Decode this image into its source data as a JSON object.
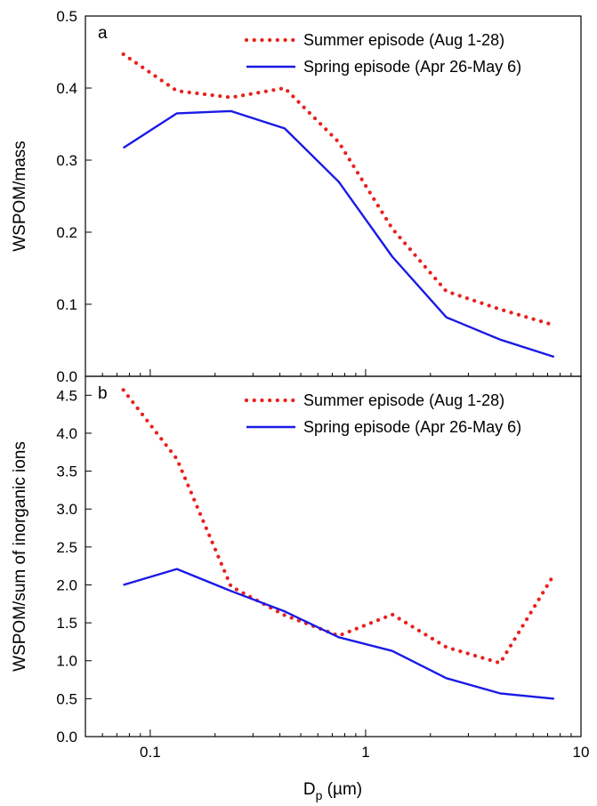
{
  "chart_data": {
    "type": "line",
    "x_scale": "log",
    "xlabel_main": "D",
    "xlabel_sub": "p",
    "xlabel_unit": " (µm)",
    "xlim": [
      0.05,
      10
    ],
    "x_ticks": [
      0.1,
      1,
      10
    ],
    "x_tick_labels": [
      "0.1",
      "1",
      "10"
    ],
    "panels": [
      {
        "letter": "a",
        "ylabel": "WSPOM/mass",
        "ylim": [
          0,
          0.5
        ],
        "y_ticks": [
          0,
          0.1,
          0.2,
          0.3,
          0.4,
          0.5
        ],
        "y_tick_labels": [
          "0.0",
          "0.1",
          "0.2",
          "0.3",
          "0.4",
          "0.5"
        ],
        "legend_position": "top-right",
        "series": [
          {
            "name": "Summer episode (Aug 1-28)",
            "color": "#e8211d",
            "style": "dotted",
            "x": [
              0.075,
              0.133,
              0.237,
              0.421,
              0.75,
              1.33,
              2.37,
              4.21,
              7.5
            ],
            "y": [
              0.447,
              0.396,
              0.387,
              0.4,
              0.325,
              0.205,
              0.118,
              0.093,
              0.071
            ]
          },
          {
            "name": "Spring episode (Apr 26-May 6)",
            "color": "#1a1ae6",
            "style": "solid",
            "x": [
              0.075,
              0.133,
              0.237,
              0.421,
              0.75,
              1.33,
              2.37,
              4.21,
              7.5
            ],
            "y": [
              0.317,
              0.365,
              0.368,
              0.344,
              0.27,
              0.166,
              0.082,
              0.051,
              0.027
            ]
          }
        ]
      },
      {
        "letter": "b",
        "ylabel": "WSPOM/sum of inorganic ions",
        "ylim": [
          0,
          4.75
        ],
        "y_ticks": [
          0,
          0.5,
          1,
          1.5,
          2,
          2.5,
          3,
          3.5,
          4,
          4.5
        ],
        "y_tick_labels": [
          "0.0",
          "0.5",
          "1.0",
          "1.5",
          "2.0",
          "2.5",
          "3.0",
          "3.5",
          "4.0",
          "4.5"
        ],
        "legend_position": "top-right",
        "series": [
          {
            "name": "Summer episode (Aug 1-28)",
            "color": "#e8211d",
            "style": "dotted",
            "x": [
              0.075,
              0.133,
              0.237,
              0.421,
              0.75,
              1.33,
              2.37,
              4.21,
              7.5
            ],
            "y": [
              4.57,
              3.66,
              1.98,
              1.6,
              1.33,
              1.61,
              1.18,
              0.97,
              2.14
            ]
          },
          {
            "name": "Spring episode (Apr 26-May 6)",
            "color": "#1a1ae6",
            "style": "solid",
            "x": [
              0.075,
              0.133,
              0.237,
              0.421,
              0.75,
              1.33,
              2.37,
              4.21,
              7.5
            ],
            "y": [
              2.0,
              2.21,
              1.92,
              1.65,
              1.31,
              1.13,
              0.77,
              0.57,
              0.5
            ]
          }
        ]
      }
    ]
  }
}
